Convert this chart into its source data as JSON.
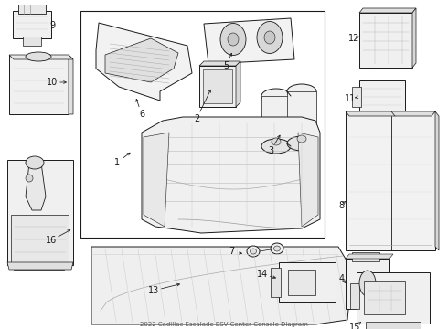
{
  "bg": "#ffffff",
  "lc": "#1a1a1a",
  "lw": 0.7,
  "fill": "#f8f8f8",
  "fill2": "#eeeeee",
  "title": "2022 Cadillac Escalade ESV Center Console Diagram",
  "figw": 4.9,
  "figh": 3.6,
  "dpi": 100
}
